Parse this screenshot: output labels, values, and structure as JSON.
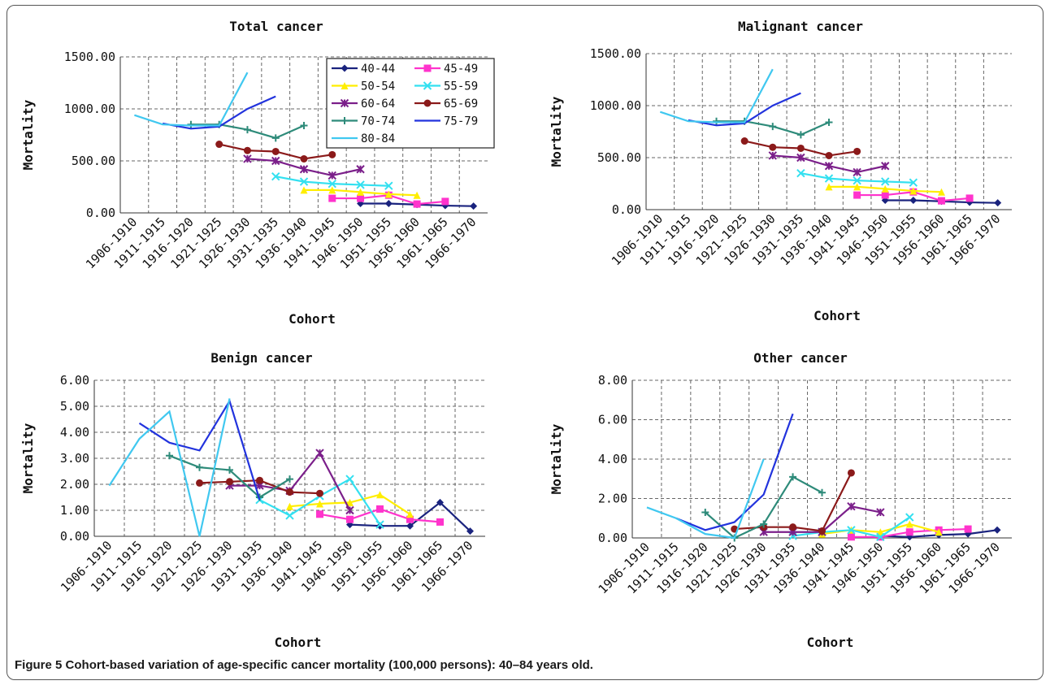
{
  "figure": {
    "label": "Figure 5",
    "caption": "Cohort-based variation of age-specific cancer mortality (100,000 persons): 40–84 years old."
  },
  "series_styles": [
    {
      "name": "40-44",
      "color": "#1a237e",
      "marker": "diamond"
    },
    {
      "name": "45-49",
      "color": "#ff33cc",
      "marker": "square"
    },
    {
      "name": "50-54",
      "color": "#ffee00",
      "marker": "triangle"
    },
    {
      "name": "55-59",
      "color": "#33e0f0",
      "marker": "x"
    },
    {
      "name": "60-64",
      "color": "#7b1f8a",
      "marker": "star"
    },
    {
      "name": "65-69",
      "color": "#8b1a1a",
      "marker": "circle"
    },
    {
      "name": "70-74",
      "color": "#2e8b7a",
      "marker": "plus"
    },
    {
      "name": "75-79",
      "color": "#2233dd",
      "marker": "none"
    },
    {
      "name": "80-84",
      "color": "#40c8f0",
      "marker": "none"
    }
  ],
  "chart_data": [
    {
      "type": "line",
      "title": "Total cancer",
      "xlabel": "Cohort",
      "ylabel": "Mortality",
      "ylim": [
        0,
        1500
      ],
      "yticks": [
        "0.00",
        "500.00",
        "1000.00",
        "1500.00"
      ],
      "grid": true,
      "legend": "top-right",
      "categories": [
        "1906-1910",
        "1911-1915",
        "1916-1920",
        "1921-1925",
        "1926-1930",
        "1931-1935",
        "1936-1940",
        "1941-1945",
        "1946-1950",
        "1951-1955",
        "1956-1960",
        "1961-1965",
        "1966-1970"
      ],
      "series": [
        {
          "name": "40-44",
          "values": [
            null,
            null,
            null,
            null,
            null,
            null,
            null,
            null,
            90,
            90,
            80,
            70,
            65
          ]
        },
        {
          "name": "45-49",
          "values": [
            null,
            null,
            null,
            null,
            null,
            null,
            null,
            140,
            140,
            170,
            85,
            110,
            null
          ]
        },
        {
          "name": "50-54",
          "values": [
            null,
            null,
            null,
            null,
            null,
            null,
            220,
            220,
            200,
            180,
            170,
            null,
            null
          ]
        },
        {
          "name": "55-59",
          "values": [
            null,
            null,
            null,
            null,
            null,
            350,
            300,
            280,
            270,
            260,
            null,
            null,
            null
          ]
        },
        {
          "name": "60-64",
          "values": [
            null,
            null,
            null,
            null,
            520,
            500,
            420,
            360,
            420,
            null,
            null,
            null,
            null
          ]
        },
        {
          "name": "65-69",
          "values": [
            null,
            null,
            null,
            660,
            600,
            590,
            520,
            560,
            null,
            null,
            null,
            null,
            null
          ]
        },
        {
          "name": "70-74",
          "values": [
            null,
            null,
            850,
            850,
            800,
            720,
            840,
            null,
            null,
            null,
            null,
            null,
            null
          ]
        },
        {
          "name": "75-79",
          "values": [
            null,
            860,
            810,
            830,
            1000,
            1120,
            null,
            null,
            null,
            null,
            null,
            null,
            null
          ]
        },
        {
          "name": "80-84",
          "values": [
            940,
            850,
            840,
            840,
            1350,
            null,
            null,
            null,
            null,
            null,
            null,
            null,
            null
          ]
        }
      ]
    },
    {
      "type": "line",
      "title": "Malignant cancer",
      "xlabel": "Cohort",
      "ylabel": "Mortality",
      "ylim": [
        0,
        1500
      ],
      "yticks": [
        "0.00",
        "500.00",
        "1000.00",
        "1500.00"
      ],
      "grid": true,
      "categories": [
        "1906-1910",
        "1911-1915",
        "1916-1920",
        "1921-1925",
        "1926-1930",
        "1931-1935",
        "1936-1940",
        "1941-1945",
        "1946-1950",
        "1951-1955",
        "1956-1960",
        "1961-1965",
        "1966-1970"
      ],
      "series": [
        {
          "name": "40-44",
          "values": [
            null,
            null,
            null,
            null,
            null,
            null,
            null,
            null,
            90,
            90,
            80,
            70,
            65
          ]
        },
        {
          "name": "45-49",
          "values": [
            null,
            null,
            null,
            null,
            null,
            null,
            null,
            140,
            140,
            170,
            85,
            110,
            null
          ]
        },
        {
          "name": "50-54",
          "values": [
            null,
            null,
            null,
            null,
            null,
            null,
            220,
            220,
            200,
            180,
            170,
            null,
            null
          ]
        },
        {
          "name": "55-59",
          "values": [
            null,
            null,
            null,
            null,
            null,
            350,
            300,
            280,
            270,
            260,
            null,
            null,
            null
          ]
        },
        {
          "name": "60-64",
          "values": [
            null,
            null,
            null,
            null,
            520,
            500,
            420,
            360,
            420,
            null,
            null,
            null,
            null
          ]
        },
        {
          "name": "65-69",
          "values": [
            null,
            null,
            null,
            660,
            600,
            590,
            520,
            560,
            null,
            null,
            null,
            null,
            null
          ]
        },
        {
          "name": "70-74",
          "values": [
            null,
            null,
            850,
            850,
            800,
            720,
            840,
            null,
            null,
            null,
            null,
            null,
            null
          ]
        },
        {
          "name": "75-79",
          "values": [
            null,
            860,
            810,
            830,
            1000,
            1120,
            null,
            null,
            null,
            null,
            null,
            null,
            null
          ]
        },
        {
          "name": "80-84",
          "values": [
            940,
            850,
            840,
            840,
            1350,
            null,
            null,
            null,
            null,
            null,
            null,
            null,
            null
          ]
        }
      ]
    },
    {
      "type": "line",
      "title": "Benign cancer",
      "xlabel": "Cohort",
      "ylabel": "Mortality",
      "ylim": [
        0,
        6
      ],
      "yticks": [
        "0.00",
        "1.00",
        "2.00",
        "3.00",
        "4.00",
        "5.00",
        "6.00"
      ],
      "grid": true,
      "categories": [
        "1906-1910",
        "1911-1915",
        "1916-1920",
        "1921-1925",
        "1926-1930",
        "1931-1935",
        "1936-1940",
        "1941-1945",
        "1946-1950",
        "1951-1955",
        "1956-1960",
        "1961-1965",
        "1966-1970"
      ],
      "series": [
        {
          "name": "40-44",
          "values": [
            null,
            null,
            null,
            null,
            null,
            null,
            null,
            null,
            0.45,
            0.4,
            0.4,
            1.3,
            0.2
          ]
        },
        {
          "name": "45-49",
          "values": [
            null,
            null,
            null,
            null,
            null,
            null,
            null,
            0.85,
            0.65,
            1.05,
            0.65,
            0.55,
            null
          ]
        },
        {
          "name": "50-54",
          "values": [
            null,
            null,
            null,
            null,
            null,
            null,
            1.15,
            1.25,
            1.3,
            1.6,
            0.85,
            null,
            null
          ]
        },
        {
          "name": "55-59",
          "values": [
            null,
            null,
            null,
            null,
            null,
            1.4,
            0.8,
            1.55,
            2.2,
            0.45,
            null,
            null,
            null
          ]
        },
        {
          "name": "60-64",
          "values": [
            null,
            null,
            null,
            null,
            1.95,
            1.95,
            1.75,
            3.2,
            1.0,
            null,
            null,
            null,
            null
          ]
        },
        {
          "name": "65-69",
          "values": [
            null,
            null,
            null,
            2.05,
            2.1,
            2.15,
            1.7,
            1.65,
            null,
            null,
            null,
            null,
            null
          ]
        },
        {
          "name": "70-74",
          "values": [
            null,
            null,
            3.1,
            2.65,
            2.55,
            1.5,
            2.2,
            null,
            null,
            null,
            null,
            null,
            null
          ]
        },
        {
          "name": "75-79",
          "values": [
            null,
            4.35,
            3.6,
            3.3,
            5.2,
            1.4,
            null,
            null,
            null,
            null,
            null,
            null,
            null
          ]
        },
        {
          "name": "80-84",
          "values": [
            1.95,
            3.75,
            4.8,
            0.0,
            5.3,
            null,
            null,
            null,
            null,
            null,
            null,
            null,
            null
          ]
        }
      ]
    },
    {
      "type": "line",
      "title": "Other cancer",
      "xlabel": "Cohort",
      "ylabel": "Mortality",
      "ylim": [
        0,
        8
      ],
      "yticks": [
        "0.00",
        "2.00",
        "4.00",
        "6.00",
        "8.00"
      ],
      "grid": true,
      "categories": [
        "1906-1910",
        "1911-1915",
        "1916-1920",
        "1921-1925",
        "1926-1930",
        "1931-1935",
        "1936-1940",
        "1941-1945",
        "1946-1950",
        "1951-1955",
        "1956-1960",
        "1961-1965",
        "1966-1970"
      ],
      "series": [
        {
          "name": "40-44",
          "values": [
            null,
            null,
            null,
            null,
            null,
            null,
            null,
            null,
            0.1,
            0.05,
            0.15,
            0.2,
            0.4
          ]
        },
        {
          "name": "45-49",
          "values": [
            null,
            null,
            null,
            null,
            null,
            null,
            null,
            0.05,
            0.05,
            0.3,
            0.4,
            0.45,
            null
          ]
        },
        {
          "name": "50-54",
          "values": [
            null,
            null,
            null,
            null,
            null,
            null,
            0.2,
            0.4,
            0.3,
            0.7,
            0.3,
            null,
            null
          ]
        },
        {
          "name": "55-59",
          "values": [
            null,
            null,
            null,
            null,
            null,
            0.1,
            0.3,
            0.4,
            0.05,
            1.05,
            null,
            null,
            null
          ]
        },
        {
          "name": "60-64",
          "values": [
            null,
            null,
            null,
            null,
            0.3,
            0.3,
            0.3,
            1.6,
            1.3,
            null,
            null,
            null,
            null
          ]
        },
        {
          "name": "65-69",
          "values": [
            null,
            null,
            null,
            0.45,
            0.55,
            0.55,
            0.35,
            3.3,
            null,
            null,
            null,
            null,
            null
          ]
        },
        {
          "name": "70-74",
          "values": [
            null,
            null,
            1.3,
            0.0,
            0.7,
            3.1,
            2.3,
            null,
            null,
            null,
            null,
            null,
            null
          ]
        },
        {
          "name": "75-79",
          "values": [
            null,
            1.0,
            0.4,
            0.8,
            2.2,
            6.3,
            null,
            null,
            null,
            null,
            null,
            null,
            null
          ]
        },
        {
          "name": "80-84",
          "values": [
            1.55,
            1.0,
            0.2,
            0.0,
            4.0,
            null,
            null,
            null,
            null,
            null,
            null,
            null,
            null
          ]
        }
      ]
    }
  ]
}
